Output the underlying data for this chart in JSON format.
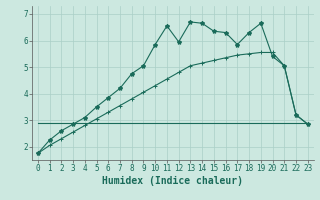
{
  "xlabel": "Humidex (Indice chaleur)",
  "bg_color": "#cce8e0",
  "grid_color": "#aacfc7",
  "line_color": "#1a6b5a",
  "line1_x": [
    0,
    1,
    2,
    3,
    4,
    5,
    6,
    7,
    8,
    9,
    10,
    11,
    12,
    13,
    14,
    15,
    16,
    17,
    18,
    19,
    20,
    21,
    22,
    23
  ],
  "line1_y": [
    1.75,
    2.25,
    2.6,
    2.85,
    3.1,
    3.5,
    3.85,
    4.2,
    4.75,
    5.05,
    5.85,
    6.55,
    5.95,
    6.7,
    6.65,
    6.35,
    6.3,
    5.85,
    6.3,
    6.65,
    5.4,
    5.05,
    3.2,
    2.85
  ],
  "line2_x": [
    0,
    1,
    2,
    3,
    4,
    5,
    6,
    7,
    8,
    9,
    10,
    11,
    12,
    13,
    14,
    15,
    16,
    17,
    18,
    19,
    20,
    21,
    22,
    23
  ],
  "line2_y": [
    1.75,
    2.05,
    2.3,
    2.55,
    2.8,
    3.05,
    3.3,
    3.55,
    3.8,
    4.05,
    4.3,
    4.55,
    4.8,
    5.05,
    5.15,
    5.25,
    5.35,
    5.45,
    5.5,
    5.55,
    5.55,
    5.05,
    3.2,
    2.85
  ],
  "line3_x": [
    0,
    1,
    2,
    3,
    4,
    5,
    6,
    7,
    8,
    9,
    10,
    11,
    12,
    13,
    14,
    15,
    16,
    17,
    18,
    19,
    20,
    21,
    22,
    23
  ],
  "line3_y": [
    2.9,
    2.9,
    2.9,
    2.9,
    2.9,
    2.9,
    2.9,
    2.9,
    2.9,
    2.9,
    2.9,
    2.9,
    2.9,
    2.9,
    2.9,
    2.9,
    2.9,
    2.9,
    2.9,
    2.9,
    2.9,
    2.9,
    2.9,
    2.9
  ],
  "xlim": [
    -0.5,
    23.5
  ],
  "ylim": [
    1.5,
    7.3
  ],
  "yticks": [
    2,
    3,
    4,
    5,
    6,
    7
  ],
  "xticks": [
    0,
    1,
    2,
    3,
    4,
    5,
    6,
    7,
    8,
    9,
    10,
    11,
    12,
    13,
    14,
    15,
    16,
    17,
    18,
    19,
    20,
    21,
    22,
    23
  ],
  "tick_fontsize": 5.5,
  "label_fontsize": 7
}
